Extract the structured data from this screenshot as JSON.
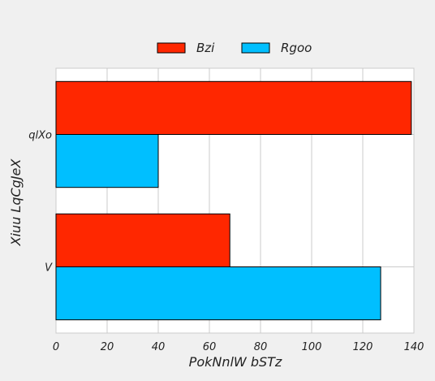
{
  "chart_data": {
    "type": "bar",
    "orientation": "horizontal",
    "categories": [
      "V",
      "qlXo"
    ],
    "series": [
      {
        "name": "Bzi",
        "values": [
          68,
          139
        ],
        "color": "#ff2700"
      },
      {
        "name": "Rgoo",
        "values": [
          127,
          40
        ],
        "color": "#00bfff"
      }
    ],
    "xlabel": "PokNnlW bSTz",
    "ylabel": "Xiuu LqCgJeX",
    "xlim": [
      0,
      140
    ],
    "xticks": [
      "0",
      "20",
      "40",
      "60",
      "80",
      "100",
      "120",
      "140"
    ],
    "grid": true,
    "legend_position": "top-center"
  },
  "colors": {
    "background": "#f0f0f0",
    "plot_background": "#ffffff",
    "grid": "#cbcbcb"
  }
}
